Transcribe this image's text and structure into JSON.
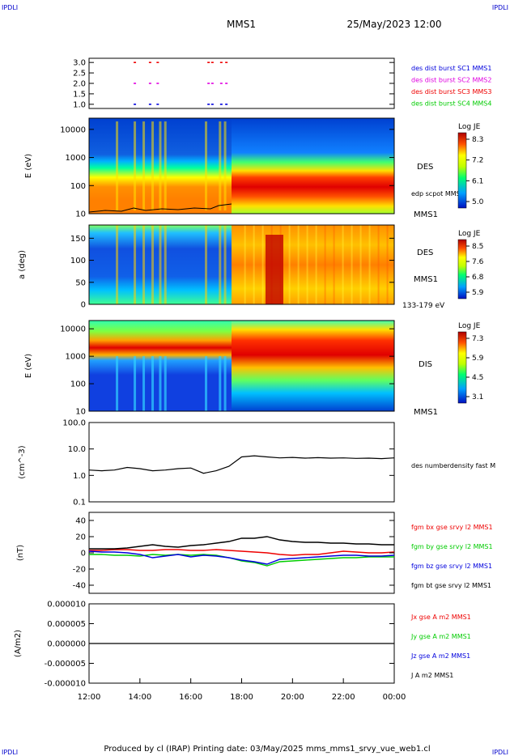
{
  "corner_label": "IPDLI",
  "header": {
    "title": "MMS1",
    "datetime": "25/May/2023 12:00"
  },
  "footer": "Produced by cl (IRAP)   Printing date: 03/May/2025   mms_mms1_srvy_vue_web1.cl",
  "colors": {
    "blue": "#0000dd",
    "magenta": "#e000e0",
    "red": "#ee0000",
    "green": "#00cc00",
    "black": "#000000"
  },
  "chart_data": [
    {
      "type": "scatter",
      "panel": "burst",
      "ylim": [
        0.8,
        3.2
      ],
      "yticks": [
        "3.0",
        "2.5",
        "2.0",
        "1.5",
        "1.0"
      ],
      "legend": [
        {
          "label": "des dist burst SC1 MMS1",
          "color": "#0000dd"
        },
        {
          "label": "des dist burst SC2 MMS2",
          "color": "#e000e0"
        },
        {
          "label": "des dist burst SC3 MMS3",
          "color": "#ee0000"
        },
        {
          "label": "des dist burst SC4 MMS4",
          "color": "#00cc00"
        }
      ],
      "series": [
        {
          "y": 3.0,
          "color": "#ee0000",
          "x": [
            13.8,
            14.4,
            14.7,
            16.7,
            16.85,
            17.2,
            17.4
          ]
        },
        {
          "y": 2.0,
          "color": "#e000e0",
          "x": [
            13.8,
            14.4,
            14.7,
            16.7,
            16.85,
            17.2,
            17.4
          ]
        },
        {
          "y": 1.0,
          "color": "#0000dd",
          "x": [
            13.8,
            14.4,
            14.7,
            16.7,
            16.85,
            17.2,
            17.4
          ]
        }
      ]
    },
    {
      "type": "heatmap",
      "panel": "des_energy",
      "ylabel": "E (eV)",
      "yticks": [
        "10000",
        "1000",
        "100",
        "10"
      ],
      "side_labels": [
        "DES",
        "MMS1"
      ],
      "overlay_label": "edp scpot MMS1",
      "colorbar": {
        "title": "Log JE",
        "ticks": [
          "8.3",
          "7.2",
          "6.1",
          "5.0"
        ]
      }
    },
    {
      "type": "heatmap",
      "panel": "des_pitch",
      "ylabel": "a (deg)",
      "yticks": [
        "150",
        "100",
        "50",
        "0"
      ],
      "side_labels": [
        "DES",
        "MMS1",
        "133-179 eV"
      ],
      "colorbar": {
        "title": "Log JE",
        "ticks": [
          "8.5",
          "7.6",
          "6.8",
          "5.9"
        ]
      }
    },
    {
      "type": "heatmap",
      "panel": "dis_energy",
      "ylabel": "E (eV)",
      "yticks": [
        "10000",
        "1000",
        "100",
        "10"
      ],
      "side_labels": [
        "DIS",
        "MMS1"
      ],
      "colorbar": {
        "title": "Log JE",
        "ticks": [
          "7.3",
          "5.9",
          "4.5",
          "3.1"
        ]
      }
    },
    {
      "type": "line",
      "panel": "density",
      "ylabel": "(cm^-3)",
      "yticks": [
        "100.0",
        "10.0",
        "1.0",
        "0.1"
      ],
      "ylim": [
        0.1,
        100
      ],
      "legend": [
        {
          "label": "des numberdensity fast M",
          "color": "#000000"
        }
      ],
      "x": [
        12.0,
        12.5,
        13.0,
        13.5,
        14.0,
        14.5,
        15.0,
        15.5,
        16.0,
        16.5,
        17.0,
        17.5,
        18.0,
        18.5,
        19.0,
        19.5,
        20.0,
        20.5,
        21.0,
        21.5,
        22.0,
        22.5,
        23.0,
        23.5,
        24.0
      ],
      "values": [
        1.6,
        1.5,
        1.6,
        2.0,
        1.8,
        1.5,
        1.6,
        1.8,
        1.9,
        1.2,
        1.5,
        2.2,
        5.0,
        5.5,
        5.0,
        4.6,
        4.8,
        4.5,
        4.7,
        4.5,
        4.6,
        4.4,
        4.5,
        4.3,
        4.6
      ]
    },
    {
      "type": "line",
      "panel": "magnetic_field",
      "ylabel": "(nT)",
      "yticks": [
        "40",
        "20",
        "0",
        "-20",
        "-40"
      ],
      "ylim": [
        -50,
        50
      ],
      "legend": [
        {
          "label": "fgm bx gse srvy l2 MMS1",
          "color": "#ee0000"
        },
        {
          "label": "fgm by gse srvy l2 MMS1",
          "color": "#00cc00"
        },
        {
          "label": "fgm bz gse srvy l2 MMS1",
          "color": "#0000dd"
        },
        {
          "label": "fgm bt gse srvy l2 MMS1",
          "color": "#000000"
        }
      ],
      "x": [
        12.0,
        12.5,
        13.0,
        13.5,
        14.0,
        14.5,
        15.0,
        15.5,
        16.0,
        16.5,
        17.0,
        17.5,
        18.0,
        18.5,
        19.0,
        19.5,
        20.0,
        20.5,
        21.0,
        21.5,
        22.0,
        22.5,
        23.0,
        23.5,
        24.0
      ],
      "series": [
        {
          "name": "bx",
          "color": "#ee0000",
          "values": [
            3,
            3,
            4,
            4,
            3,
            3,
            4,
            4,
            3,
            3,
            4,
            3,
            2,
            1,
            0,
            -2,
            -3,
            -2,
            -2,
            0,
            2,
            1,
            0,
            0,
            1
          ]
        },
        {
          "name": "by",
          "color": "#00cc00",
          "values": [
            -2,
            -2,
            -3,
            -3,
            -4,
            -2,
            -3,
            -2,
            -3,
            -2,
            -3,
            -6,
            -10,
            -12,
            -16,
            -11,
            -10,
            -9,
            -8,
            -7,
            -6,
            -6,
            -5,
            -5,
            -5
          ]
        },
        {
          "name": "bz",
          "color": "#0000dd",
          "values": [
            2,
            1,
            1,
            0,
            -2,
            -6,
            -4,
            -2,
            -5,
            -3,
            -4,
            -6,
            -9,
            -11,
            -14,
            -8,
            -7,
            -6,
            -5,
            -4,
            -3,
            -3,
            -4,
            -4,
            -3
          ]
        },
        {
          "name": "bt",
          "color": "#000000",
          "values": [
            5,
            5,
            5,
            6,
            8,
            10,
            8,
            7,
            9,
            10,
            12,
            14,
            18,
            18,
            20,
            16,
            14,
            13,
            13,
            12,
            12,
            11,
            11,
            10,
            10
          ]
        }
      ]
    },
    {
      "type": "line",
      "panel": "current",
      "ylabel": "(A/m2)",
      "yticks": [
        "0.000010",
        "0.000005",
        "0.000000",
        "-0.000005",
        "-0.000010"
      ],
      "ylim": [
        -1e-05,
        1e-05
      ],
      "legend": [
        {
          "label": "Jx gse A m2 MMS1",
          "color": "#ee0000"
        },
        {
          "label": "Jy gse A m2 MMS1",
          "color": "#00cc00"
        },
        {
          "label": "Jz gse A m2 MMS1",
          "color": "#0000dd"
        },
        {
          "label": "J A m2 MMS1",
          "color": "#000000"
        }
      ],
      "x": [
        12.0,
        13.0,
        14.0,
        15.0,
        16.0,
        17.0,
        18.0,
        19.0,
        20.0,
        21.0,
        22.0,
        23.0,
        24.0
      ],
      "values": [
        0,
        0,
        0,
        0,
        0,
        0,
        0,
        0,
        0,
        0,
        0,
        0,
        0
      ]
    }
  ],
  "xaxis": {
    "xlim": [
      12,
      24
    ],
    "ticks": [
      "12:00",
      "14:00",
      "16:00",
      "18:00",
      "20:00",
      "22:00",
      "00:00"
    ]
  }
}
